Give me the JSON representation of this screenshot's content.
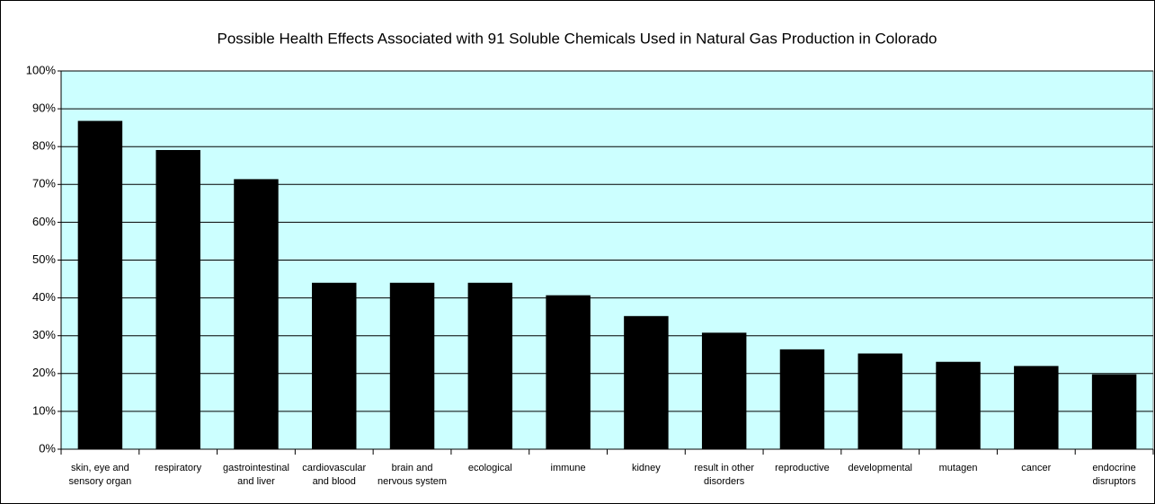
{
  "chart_data": {
    "type": "bar",
    "title": "Possible Health Effects Associated with 91 Soluble Chemicals Used in Natural Gas Production in Colorado",
    "categories": [
      "skin, eye and sensory organ",
      "respiratory",
      "gastrointestinal and liver",
      "cardiovascular and blood",
      "brain and nervous system",
      "ecological",
      "immune",
      "kidney",
      "result in other disorders",
      "reproductive",
      "developmental",
      "mutagen",
      "cancer",
      "endocrine disruptors"
    ],
    "values": [
      86.8,
      79.1,
      71.4,
      44,
      44,
      44,
      40.7,
      35.2,
      30.8,
      26.4,
      25.3,
      23.1,
      22,
      19.8
    ],
    "color": "#000000",
    "ylim": [
      0,
      100
    ],
    "yticks": [
      {
        "value": 0,
        "label": "0%"
      },
      {
        "value": 10,
        "label": "10%"
      },
      {
        "value": 20,
        "label": "20%"
      },
      {
        "value": 30,
        "label": "30%"
      },
      {
        "value": 40,
        "label": "40%"
      },
      {
        "value": 50,
        "label": "50%"
      },
      {
        "value": 60,
        "label": "60%"
      },
      {
        "value": 70,
        "label": "70%"
      },
      {
        "value": 80,
        "label": "80%"
      },
      {
        "value": 90,
        "label": "90%"
      },
      {
        "value": 100,
        "label": "100%"
      }
    ],
    "grid": true,
    "plot_background": "#ccffff"
  }
}
